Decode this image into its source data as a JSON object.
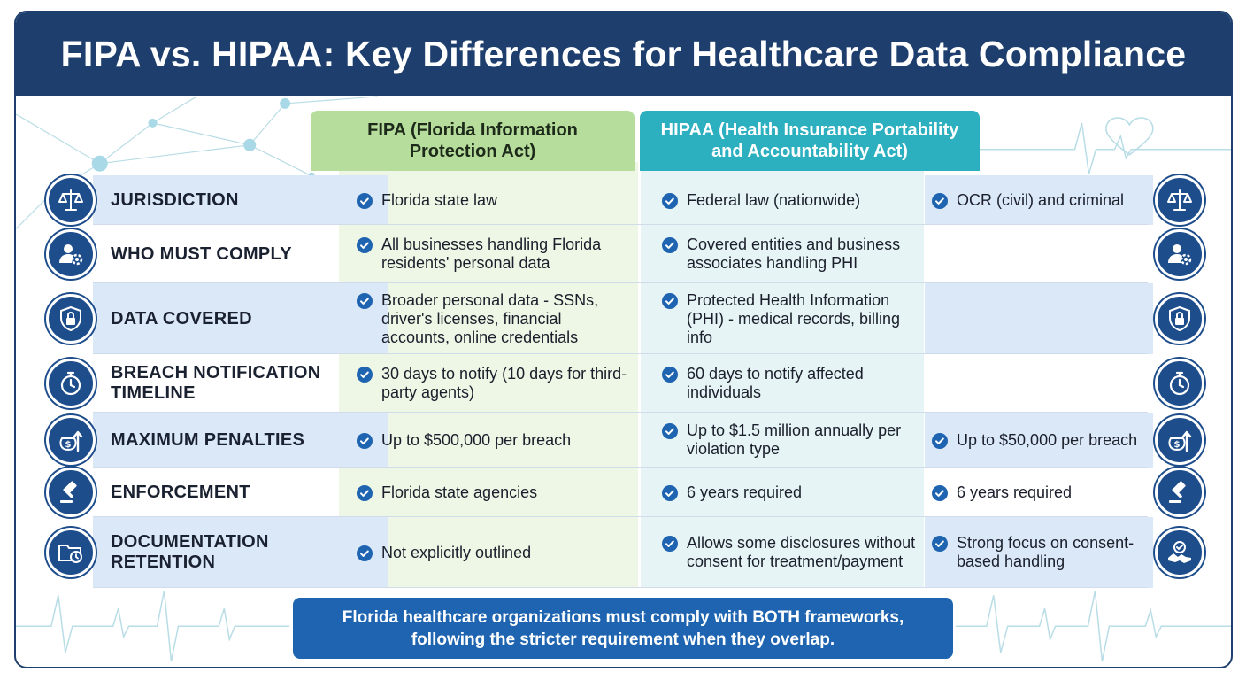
{
  "title": "FIPA vs. HIPAA: Key Differences for Healthcare Data Compliance",
  "columns": {
    "fipa": "FIPA (Florida Information Protection Act)",
    "hipaa": "HIPAA (Health Insurance Portability and Accountability Act)"
  },
  "rows": [
    {
      "label": "JURISDICTION",
      "icon": "scales-icon",
      "fipa": "Florida state law",
      "hipaa": "Federal law (nationwide)",
      "extra": "OCR (civil) and criminal"
    },
    {
      "label": "WHO MUST COMPLY",
      "icon": "user-gear-icon",
      "fipa": "All businesses handling Florida residents' personal data",
      "hipaa": "Covered entities and business associates handling PHI",
      "extra": ""
    },
    {
      "label": "DATA COVERED",
      "icon": "shield-lock-icon",
      "fipa": "Broader personal data - SSNs, driver's licenses, financial accounts, online credentials",
      "hipaa": "Protected Health Information (PHI) - medical records, billing info",
      "extra": ""
    },
    {
      "label": "BREACH NOTIFICATION TIMELINE",
      "icon": "stopwatch-icon",
      "fipa": "30 days to notify (10 days for third-party agents)",
      "hipaa": "60 days to notify affected individuals",
      "extra": ""
    },
    {
      "label": "MAXIMUM PENALTIES",
      "icon": "money-bag-arrow-icon",
      "fipa": "Up to $500,000 per breach",
      "hipaa": "Up to $1.5 million annually per violation type",
      "extra": "Up to $50,000 per breach"
    },
    {
      "label": "ENFORCEMENT",
      "icon": "gavel-icon",
      "fipa": "Florida state agencies",
      "hipaa": "6 years required",
      "extra": "6 years required"
    },
    {
      "label": "DOCUMENTATION RETENTION",
      "icon": "folder-clock-icon",
      "fipa": "Not explicitly outlined",
      "hipaa": "Allows some disclosures without consent for treatment/payment",
      "extra": "Strong focus on consent-based handling"
    }
  ],
  "banner": {
    "line1": "Florida healthcare organizations must comply with BOTH frameworks,",
    "line2": "following the stricter requirement when they overlap."
  },
  "colors": {
    "navy": "#1e3f6e",
    "fipa_header": "#b6dd9c",
    "hipaa_header": "#2cb0c0",
    "banner": "#1e64b0",
    "check": "#1e64b0"
  }
}
